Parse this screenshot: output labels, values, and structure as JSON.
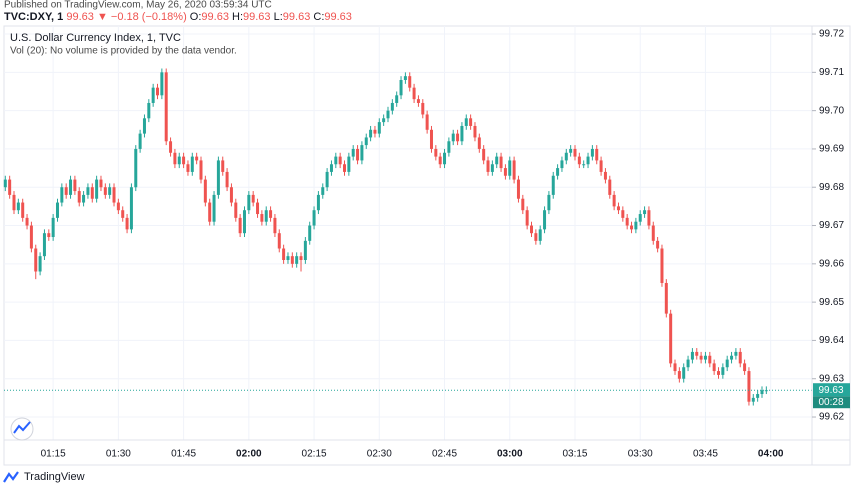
{
  "header": {
    "published": "Published on TradingView.com, May 26, 2020 03:59:34 UTC",
    "symbol": "TVC:DXY, 1",
    "last": "99.63",
    "change": "▼ −0.18 (−0.18%)",
    "ohlc": [
      {
        "key": "O:",
        "value": "99.63"
      },
      {
        "key": "H:",
        "value": "99.63"
      },
      {
        "key": "L:",
        "value": "99.63"
      },
      {
        "key": "C:",
        "value": "99.63"
      }
    ]
  },
  "chart_data": {
    "type": "candlestick",
    "title": "U.S. Dollar Currency Index, 1, TVC",
    "subtitle": "Vol (20): No volume is provided by the data vendor.",
    "up_color": "#26a69a",
    "down_color": "#ef5350",
    "grid": true,
    "price_tag": "99.63",
    "countdown": "00:28",
    "xlim": [
      63.7,
      249.5
    ],
    "xticks": [
      {
        "value": 75,
        "label": "01:15"
      },
      {
        "value": 90,
        "label": "01:30"
      },
      {
        "value": 105,
        "label": "01:45"
      },
      {
        "value": 120,
        "label": "02:00"
      },
      {
        "value": 135,
        "label": "02:15"
      },
      {
        "value": 150,
        "label": "02:30"
      },
      {
        "value": 165,
        "label": "02:45"
      },
      {
        "value": 180,
        "label": "03:00"
      },
      {
        "value": 195,
        "label": "03:15"
      },
      {
        "value": 210,
        "label": "03:30"
      },
      {
        "value": 225,
        "label": "03:45"
      },
      {
        "value": 240,
        "label": "04:00"
      }
    ],
    "ylim": [
      99.614,
      99.7221
    ],
    "yticks": [
      99.62,
      99.63,
      99.64,
      99.65,
      99.66,
      99.67,
      99.68,
      99.69,
      {
        "value": 99.7,
        "label": "99.70"
      },
      99.71,
      99.72
    ],
    "x": [
      64,
      65,
      66,
      67,
      68,
      69,
      70,
      71,
      72,
      73,
      74,
      75,
      76,
      77,
      78,
      79,
      80,
      81,
      82,
      83,
      84,
      85,
      86,
      87,
      88,
      89,
      90,
      91,
      92,
      93,
      94,
      95,
      96,
      97,
      98,
      99,
      100,
      101,
      102,
      103,
      104,
      105,
      106,
      107,
      108,
      109,
      110,
      111,
      112,
      113,
      114,
      115,
      116,
      117,
      118,
      119,
      120,
      121,
      122,
      123,
      124,
      125,
      126,
      127,
      128,
      129,
      130,
      131,
      132,
      133,
      134,
      135,
      136,
      137,
      138,
      139,
      140,
      141,
      142,
      143,
      144,
      145,
      146,
      147,
      148,
      149,
      150,
      151,
      152,
      153,
      154,
      155,
      156,
      157,
      158,
      159,
      160,
      161,
      162,
      163,
      164,
      165,
      166,
      167,
      168,
      169,
      170,
      171,
      172,
      173,
      174,
      175,
      176,
      177,
      178,
      179,
      180,
      181,
      182,
      183,
      184,
      185,
      186,
      187,
      188,
      189,
      190,
      191,
      192,
      193,
      194,
      195,
      196,
      197,
      198,
      199,
      200,
      201,
      202,
      203,
      204,
      205,
      206,
      207,
      208,
      209,
      210,
      211,
      212,
      213,
      214,
      215,
      216,
      217,
      218,
      219,
      220,
      221,
      222,
      223,
      224,
      225,
      226,
      227,
      228,
      229,
      230,
      231,
      232,
      233,
      234,
      235,
      236,
      237,
      238,
      239
    ],
    "open": [
      99.68,
      99.682,
      99.678,
      99.674,
      99.676,
      99.672,
      99.67,
      99.664,
      99.658,
      99.662,
      99.668,
      99.667,
      99.672,
      99.676,
      99.68,
      99.678,
      99.682,
      99.679,
      99.676,
      99.678,
      99.68,
      99.677,
      99.682,
      99.68,
      99.678,
      99.68,
      99.676,
      99.674,
      99.672,
      99.669,
      99.68,
      99.69,
      99.694,
      99.698,
      99.702,
      99.706,
      99.704,
      99.71,
      99.692,
      99.689,
      99.686,
      99.688,
      99.686,
      99.684,
      99.688,
      99.687,
      99.682,
      99.676,
      99.671,
      99.678,
      99.687,
      99.684,
      99.68,
      99.676,
      99.672,
      99.668,
      99.674,
      99.678,
      99.676,
      99.673,
      99.671,
      99.674,
      99.672,
      99.668,
      99.664,
      99.661,
      99.662,
      99.66,
      99.662,
      99.661,
      99.666,
      99.67,
      99.674,
      99.678,
      99.68,
      99.684,
      99.686,
      99.688,
      99.686,
      99.684,
      99.688,
      99.69,
      99.687,
      99.691,
      99.693,
      99.695,
      99.694,
      99.697,
      99.698,
      99.7,
      99.702,
      99.704,
      99.708,
      99.709,
      99.706,
      99.703,
      99.702,
      99.699,
      99.695,
      99.69,
      99.688,
      99.686,
      99.689,
      99.692,
      99.694,
      99.692,
      99.696,
      99.698,
      99.696,
      99.693,
      99.69,
      99.687,
      99.684,
      99.686,
      99.688,
      99.685,
      99.683,
      99.687,
      99.682,
      99.677,
      99.674,
      99.67,
      99.668,
      99.666,
      99.669,
      99.674,
      99.678,
      99.683,
      99.685,
      99.687,
      99.689,
      99.69,
      99.688,
      99.686,
      99.686,
      99.688,
      99.69,
      99.687,
      99.684,
      99.682,
      99.678,
      99.675,
      99.674,
      99.672,
      99.67,
      99.669,
      99.671,
      99.673,
      99.674,
      99.67,
      99.666,
      99.664,
      99.655,
      99.647,
      99.634,
      99.632,
      99.63,
      99.633,
      99.635,
      99.637,
      99.636,
      99.635,
      99.636,
      99.634,
      99.632,
      99.631,
      99.633,
      99.635,
      99.636,
      99.637,
      99.634,
      99.632,
      99.624,
      99.625,
      99.626,
      99.627
    ],
    "high": [
      99.683,
      99.683,
      99.679,
      99.677,
      99.677,
      99.673,
      99.671,
      99.665,
      99.663,
      99.669,
      99.669,
      99.673,
      99.677,
      99.681,
      99.681,
      99.683,
      99.683,
      99.68,
      99.679,
      99.681,
      99.681,
      99.683,
      99.683,
      99.681,
      99.681,
      99.681,
      99.677,
      99.675,
      99.673,
      99.681,
      99.691,
      99.695,
      99.699,
      99.703,
      99.707,
      99.707,
      99.711,
      99.711,
      99.693,
      99.69,
      99.689,
      99.689,
      99.687,
      99.689,
      99.689,
      99.688,
      99.683,
      99.677,
      99.679,
      99.688,
      99.688,
      99.685,
      99.681,
      99.677,
      99.673,
      99.675,
      99.679,
      99.679,
      99.677,
      99.674,
      99.675,
      99.675,
      99.673,
      99.669,
      99.665,
      99.663,
      99.663,
      99.663,
      99.663,
      99.667,
      99.671,
      99.675,
      99.679,
      99.681,
      99.685,
      99.687,
      99.689,
      99.689,
      99.687,
      99.689,
      99.691,
      99.691,
      99.692,
      99.694,
      99.696,
      99.696,
      99.698,
      99.699,
      99.701,
      99.703,
      99.705,
      99.709,
      99.71,
      99.71,
      99.707,
      99.704,
      99.703,
      99.7,
      99.696,
      99.691,
      99.689,
      99.69,
      99.693,
      99.695,
      99.695,
      99.697,
      99.699,
      99.699,
      99.697,
      99.694,
      99.691,
      99.688,
      99.687,
      99.689,
      99.689,
      99.686,
      99.688,
      99.688,
      99.683,
      99.678,
      99.675,
      99.671,
      99.669,
      99.67,
      99.675,
      99.679,
      99.684,
      99.686,
      99.688,
      99.69,
      99.691,
      99.691,
      99.689,
      99.687,
      99.689,
      99.691,
      99.691,
      99.688,
      99.685,
      99.683,
      99.679,
      99.676,
      99.675,
      99.673,
      99.671,
      99.672,
      99.674,
      99.675,
      99.675,
      99.671,
      99.667,
      99.665,
      99.656,
      99.648,
      99.635,
      99.633,
      99.634,
      99.636,
      99.638,
      99.638,
      99.637,
      99.637,
      99.637,
      99.635,
      99.633,
      99.634,
      99.636,
      99.637,
      99.638,
      99.638,
      99.635,
      99.633,
      99.626,
      99.627,
      99.628,
      99.628
    ],
    "low": [
      99.679,
      99.677,
      99.673,
      99.673,
      99.671,
      99.669,
      99.663,
      99.656,
      99.657,
      99.661,
      99.666,
      99.666,
      99.671,
      99.675,
      99.677,
      99.677,
      99.678,
      99.675,
      99.675,
      99.677,
      99.676,
      99.676,
      99.679,
      99.677,
      99.677,
      99.675,
      99.673,
      99.671,
      99.668,
      99.668,
      99.679,
      99.689,
      99.693,
      99.697,
      99.701,
      99.703,
      99.703,
      99.691,
      99.688,
      99.685,
      99.685,
      99.685,
      99.683,
      99.683,
      99.686,
      99.681,
      99.675,
      99.67,
      99.67,
      99.677,
      99.683,
      99.679,
      99.675,
      99.671,
      99.667,
      99.667,
      99.673,
      99.675,
      99.672,
      99.67,
      99.67,
      99.671,
      99.667,
      99.663,
      99.66,
      99.66,
      99.659,
      99.659,
      99.658,
      99.66,
      99.665,
      99.669,
      99.673,
      99.677,
      99.679,
      99.683,
      99.685,
      99.685,
      99.683,
      99.683,
      99.687,
      99.686,
      99.686,
      99.69,
      99.692,
      99.693,
      99.693,
      99.696,
      99.697,
      99.699,
      99.701,
      99.703,
      99.707,
      99.705,
      99.702,
      99.701,
      99.698,
      99.694,
      99.689,
      99.687,
      99.685,
      99.685,
      99.688,
      99.691,
      99.691,
      99.691,
      99.695,
      99.695,
      99.692,
      99.689,
      99.686,
      99.683,
      99.683,
      99.685,
      99.684,
      99.682,
      99.682,
      99.681,
      99.676,
      99.673,
      99.669,
      99.667,
      99.665,
      99.665,
      99.668,
      99.673,
      99.677,
      99.682,
      99.684,
      99.686,
      99.688,
      99.687,
      99.685,
      99.685,
      99.685,
      99.687,
      99.686,
      99.683,
      99.681,
      99.677,
      99.674,
      99.673,
      99.671,
      99.669,
      99.668,
      99.668,
      99.67,
      99.672,
      99.669,
      99.665,
      99.663,
      99.654,
      99.646,
      99.633,
      99.631,
      99.629,
      99.629,
      99.632,
      99.634,
      99.635,
      99.634,
      99.634,
      99.633,
      99.631,
      99.63,
      99.63,
      99.632,
      99.634,
      99.635,
      99.633,
      99.631,
      99.623,
      99.623,
      99.624,
      99.625,
      99.626
    ],
    "close": [
      99.682,
      99.678,
      99.674,
      99.676,
      99.672,
      99.67,
      99.664,
      99.658,
      99.662,
      99.668,
      99.667,
      99.672,
      99.676,
      99.68,
      99.678,
      99.682,
      99.679,
      99.676,
      99.678,
      99.68,
      99.677,
      99.682,
      99.68,
      99.678,
      99.68,
      99.676,
      99.674,
      99.672,
      99.669,
      99.68,
      99.69,
      99.694,
      99.698,
      99.702,
      99.706,
      99.704,
      99.71,
      99.692,
      99.689,
      99.686,
      99.688,
      99.686,
      99.684,
      99.688,
      99.687,
      99.682,
      99.676,
      99.671,
      99.678,
      99.687,
      99.684,
      99.68,
      99.676,
      99.672,
      99.668,
      99.674,
      99.678,
      99.676,
      99.673,
      99.671,
      99.674,
      99.672,
      99.668,
      99.664,
      99.661,
      99.662,
      99.66,
      99.662,
      99.661,
      99.666,
      99.67,
      99.674,
      99.678,
      99.68,
      99.684,
      99.686,
      99.688,
      99.686,
      99.684,
      99.688,
      99.69,
      99.687,
      99.691,
      99.693,
      99.695,
      99.694,
      99.697,
      99.698,
      99.7,
      99.702,
      99.704,
      99.708,
      99.709,
      99.706,
      99.703,
      99.702,
      99.699,
      99.695,
      99.69,
      99.688,
      99.686,
      99.689,
      99.692,
      99.694,
      99.692,
      99.696,
      99.698,
      99.696,
      99.693,
      99.69,
      99.687,
      99.684,
      99.686,
      99.688,
      99.685,
      99.683,
      99.687,
      99.682,
      99.677,
      99.674,
      99.67,
      99.668,
      99.666,
      99.669,
      99.674,
      99.678,
      99.683,
      99.685,
      99.687,
      99.689,
      99.69,
      99.688,
      99.686,
      99.686,
      99.688,
      99.69,
      99.687,
      99.684,
      99.682,
      99.678,
      99.675,
      99.674,
      99.672,
      99.67,
      99.669,
      99.671,
      99.673,
      99.674,
      99.67,
      99.666,
      99.664,
      99.655,
      99.647,
      99.634,
      99.632,
      99.63,
      99.633,
      99.635,
      99.637,
      99.636,
      99.635,
      99.636,
      99.634,
      99.632,
      99.631,
      99.633,
      99.635,
      99.636,
      99.637,
      99.634,
      99.632,
      99.624,
      99.625,
      99.626,
      99.627,
      99.627
    ]
  },
  "footer": {
    "brand": "TradingView"
  }
}
